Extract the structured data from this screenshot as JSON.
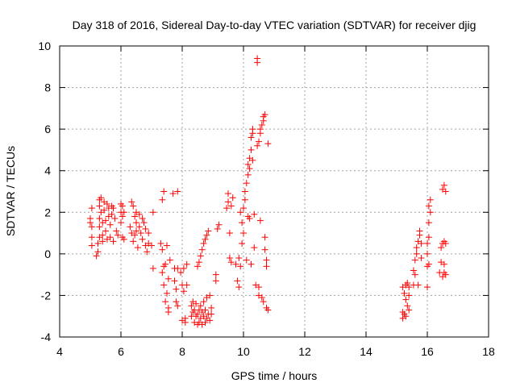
{
  "chart_data": {
    "type": "scatter",
    "title": "Day 318 of 2016, Sidereal Day-to-day VTEC variation (SDTVAR) for receiver djig",
    "xlabel": "GPS time / hours",
    "ylabel": "SDTVAR / TECUs",
    "xlim": [
      4,
      18
    ],
    "ylim": [
      -4,
      10
    ],
    "xticks": [
      "4",
      "6",
      "8",
      "10",
      "12",
      "14",
      "16",
      "18"
    ],
    "yticks": [
      "-4",
      "-2",
      "0",
      "2",
      "4",
      "6",
      "8",
      "10"
    ],
    "grid": true,
    "marker": "plus",
    "color": "#ff0000",
    "series": [
      {
        "points": [
          [
            5.0,
            1.7
          ],
          [
            5.0,
            1.5
          ],
          [
            5.05,
            2.2
          ],
          [
            5.05,
            1.3
          ],
          [
            5.05,
            0.8
          ],
          [
            5.05,
            0.4
          ],
          [
            5.2,
            -0.1
          ],
          [
            5.25,
            0.1
          ],
          [
            5.25,
            0.5
          ],
          [
            5.3,
            0.8
          ],
          [
            5.3,
            1.3
          ],
          [
            5.3,
            1.7
          ],
          [
            5.3,
            2.3
          ],
          [
            5.3,
            2.6
          ],
          [
            5.35,
            2.7
          ],
          [
            5.35,
            2.0
          ],
          [
            5.4,
            1.5
          ],
          [
            5.4,
            0.9
          ],
          [
            5.4,
            0.6
          ],
          [
            5.45,
            2.5
          ],
          [
            5.45,
            2.1
          ],
          [
            5.5,
            1.6
          ],
          [
            5.5,
            1.1
          ],
          [
            5.55,
            0.7
          ],
          [
            5.55,
            2.4
          ],
          [
            5.6,
            2.2
          ],
          [
            5.6,
            1.8
          ],
          [
            5.65,
            0.8
          ],
          [
            5.65,
            1.4
          ],
          [
            5.7,
            2.3
          ],
          [
            5.7,
            1.9
          ],
          [
            5.75,
            0.6
          ],
          [
            5.75,
            2.2
          ],
          [
            5.8,
            1.7
          ],
          [
            5.85,
            1.1
          ],
          [
            5.9,
            0.9
          ],
          [
            6.0,
            2.4
          ],
          [
            6.0,
            2.0
          ],
          [
            6.0,
            1.5
          ],
          [
            6.05,
            2.3
          ],
          [
            6.05,
            1.8
          ],
          [
            6.05,
            0.8
          ],
          [
            6.1,
            2.0
          ],
          [
            6.1,
            0.7
          ],
          [
            6.3,
            1.3
          ],
          [
            6.35,
            2.5
          ],
          [
            6.35,
            1.0
          ],
          [
            6.4,
            2.3
          ],
          [
            6.4,
            0.6
          ],
          [
            6.45,
            1.8
          ],
          [
            6.45,
            0.9
          ],
          [
            6.5,
            2.0
          ],
          [
            6.5,
            1.5
          ],
          [
            6.5,
            1.1
          ],
          [
            6.55,
            0.3
          ],
          [
            6.6,
            1.9
          ],
          [
            6.6,
            1.3
          ],
          [
            6.65,
            1.0
          ],
          [
            6.7,
            0.7
          ],
          [
            6.7,
            1.7
          ],
          [
            6.75,
            1.5
          ],
          [
            6.8,
            0.4
          ],
          [
            6.8,
            1.2
          ],
          [
            6.85,
            0.1
          ],
          [
            6.9,
            1.0
          ],
          [
            6.9,
            0.5
          ],
          [
            7.0,
            0.4
          ],
          [
            7.05,
            -0.7
          ],
          [
            7.05,
            2.0
          ],
          [
            7.3,
            0.5
          ],
          [
            7.35,
            2.6
          ],
          [
            7.35,
            0.2
          ],
          [
            7.35,
            -0.9
          ],
          [
            7.4,
            -0.6
          ],
          [
            7.4,
            -1.5
          ],
          [
            7.4,
            3.0
          ],
          [
            7.45,
            -0.5
          ],
          [
            7.45,
            -2.3
          ],
          [
            7.5,
            -1.9
          ],
          [
            7.5,
            0.4
          ],
          [
            7.55,
            -2.6
          ],
          [
            7.55,
            -2.8
          ],
          [
            7.55,
            -1.2
          ],
          [
            7.6,
            -0.3
          ],
          [
            7.7,
            2.9
          ],
          [
            7.75,
            -0.7
          ],
          [
            7.75,
            -1.3
          ],
          [
            7.8,
            -1.7
          ],
          [
            7.8,
            -2.3
          ],
          [
            7.85,
            -2.5
          ],
          [
            7.85,
            3.0
          ],
          [
            7.85,
            -0.7
          ],
          [
            7.95,
            -0.9
          ],
          [
            8.0,
            -1.5
          ],
          [
            8.0,
            -3.2
          ],
          [
            8.05,
            -1.8
          ],
          [
            8.05,
            -0.7
          ],
          [
            8.1,
            -3.3
          ],
          [
            8.1,
            -3.1
          ],
          [
            8.15,
            -0.5
          ],
          [
            8.15,
            -1.5
          ],
          [
            8.3,
            -2.5
          ],
          [
            8.3,
            -3.0
          ],
          [
            8.35,
            -2.3
          ],
          [
            8.35,
            -2.8
          ],
          [
            8.4,
            -3.3
          ],
          [
            8.4,
            -2.7
          ],
          [
            8.45,
            -3.0
          ],
          [
            8.45,
            -2.4
          ],
          [
            8.5,
            -3.4
          ],
          [
            8.5,
            -2.9
          ],
          [
            8.5,
            -0.6
          ],
          [
            8.55,
            -2.7
          ],
          [
            8.55,
            -3.3
          ],
          [
            8.55,
            -0.4
          ],
          [
            8.6,
            -3.1
          ],
          [
            8.6,
            -2.5
          ],
          [
            8.6,
            -0.1
          ],
          [
            8.65,
            -3.4
          ],
          [
            8.65,
            -2.8
          ],
          [
            8.65,
            0.2
          ],
          [
            8.7,
            -3.0
          ],
          [
            8.7,
            -2.3
          ],
          [
            8.7,
            0.5
          ],
          [
            8.75,
            -3.3
          ],
          [
            8.75,
            -2.7
          ],
          [
            8.75,
            0.7
          ],
          [
            8.8,
            -3.1
          ],
          [
            8.8,
            -2.1
          ],
          [
            8.8,
            0.9
          ],
          [
            8.85,
            -2.9
          ],
          [
            8.85,
            1.1
          ],
          [
            8.9,
            -2.0
          ],
          [
            8.9,
            -3.2
          ],
          [
            8.95,
            -2.9
          ],
          [
            8.95,
            -2.6
          ],
          [
            9.1,
            -1.3
          ],
          [
            9.1,
            -1.0
          ],
          [
            9.15,
            1.2
          ],
          [
            9.2,
            1.4
          ],
          [
            9.45,
            2.2
          ],
          [
            9.5,
            2.5
          ],
          [
            9.5,
            2.9
          ],
          [
            9.55,
            1.0
          ],
          [
            9.55,
            -0.2
          ],
          [
            9.6,
            -0.4
          ],
          [
            9.6,
            2.3
          ],
          [
            9.65,
            2.7
          ],
          [
            9.75,
            -0.5
          ],
          [
            9.8,
            -1.3
          ],
          [
            9.85,
            -1.6
          ],
          [
            9.85,
            -0.2
          ],
          [
            9.9,
            -0.6
          ],
          [
            9.9,
            2.0
          ],
          [
            9.95,
            0.5
          ],
          [
            9.95,
            1.5
          ],
          [
            10.0,
            1.0
          ],
          [
            10.0,
            2.2
          ],
          [
            10.05,
            3.0
          ],
          [
            10.05,
            2.6
          ],
          [
            10.1,
            3.4
          ],
          [
            10.1,
            -0.3
          ],
          [
            10.15,
            3.8
          ],
          [
            10.15,
            4.3
          ],
          [
            10.15,
            1.8
          ],
          [
            10.2,
            4.6
          ],
          [
            10.2,
            4.1
          ],
          [
            10.2,
            1.7
          ],
          [
            10.25,
            5.0
          ],
          [
            10.25,
            5.6
          ],
          [
            10.25,
            -0.5
          ],
          [
            10.3,
            5.8
          ],
          [
            10.3,
            6.0
          ],
          [
            10.3,
            4.5
          ],
          [
            10.35,
            1.9
          ],
          [
            10.35,
            0.3
          ],
          [
            10.4,
            -1.5
          ],
          [
            10.45,
            9.2
          ],
          [
            10.45,
            9.4
          ],
          [
            10.45,
            5.2
          ],
          [
            10.5,
            5.4
          ],
          [
            10.5,
            -1.6
          ],
          [
            10.5,
            -2.0
          ],
          [
            10.55,
            5.8
          ],
          [
            10.55,
            6.0
          ],
          [
            10.55,
            1.6
          ],
          [
            10.6,
            6.2
          ],
          [
            10.6,
            -2.1
          ],
          [
            10.65,
            6.4
          ],
          [
            10.65,
            6.6
          ],
          [
            10.65,
            -2.3
          ],
          [
            10.7,
            0.8
          ],
          [
            10.7,
            0.2
          ],
          [
            10.7,
            6.7
          ],
          [
            10.75,
            -0.3
          ],
          [
            10.75,
            -0.6
          ],
          [
            10.75,
            -2.6
          ],
          [
            10.8,
            5.3
          ],
          [
            10.8,
            -2.7
          ],
          [
            15.2,
            -2.8
          ],
          [
            15.2,
            -3.1
          ],
          [
            15.2,
            -1.6
          ],
          [
            15.25,
            -1.9
          ],
          [
            15.25,
            -2.9
          ],
          [
            15.3,
            -1.5
          ],
          [
            15.3,
            -2.2
          ],
          [
            15.3,
            -3.0
          ],
          [
            15.35,
            -2.5
          ],
          [
            15.35,
            -1.4
          ],
          [
            15.4,
            -2.0
          ],
          [
            15.4,
            -1.6
          ],
          [
            15.4,
            -2.7
          ],
          [
            15.55,
            -0.8
          ],
          [
            15.55,
            -1.5
          ],
          [
            15.6,
            -0.3
          ],
          [
            15.6,
            -1.0
          ],
          [
            15.65,
            0.0
          ],
          [
            15.65,
            0.3
          ],
          [
            15.7,
            -1.5
          ],
          [
            15.7,
            0.6
          ],
          [
            15.75,
            0.9
          ],
          [
            15.75,
            1.1
          ],
          [
            15.8,
            -0.2
          ],
          [
            15.8,
            0.5
          ],
          [
            16.0,
            -1.6
          ],
          [
            16.0,
            -0.6
          ],
          [
            16.0,
            0.0
          ],
          [
            16.0,
            0.5
          ],
          [
            16.05,
            -0.5
          ],
          [
            16.05,
            0.8
          ],
          [
            16.05,
            1.5
          ],
          [
            16.05,
            2.3
          ],
          [
            16.1,
            2.0
          ],
          [
            16.1,
            2.6
          ],
          [
            16.4,
            -0.9
          ],
          [
            16.45,
            -0.4
          ],
          [
            16.45,
            0.3
          ],
          [
            16.5,
            -1.1
          ],
          [
            16.5,
            0.5
          ],
          [
            16.5,
            3.1
          ],
          [
            16.55,
            -0.5
          ],
          [
            16.55,
            -0.9
          ],
          [
            16.55,
            0.6
          ],
          [
            16.55,
            3.3
          ],
          [
            16.6,
            3.0
          ],
          [
            16.6,
            -1.0
          ],
          [
            16.6,
            0.5
          ]
        ]
      }
    ]
  }
}
